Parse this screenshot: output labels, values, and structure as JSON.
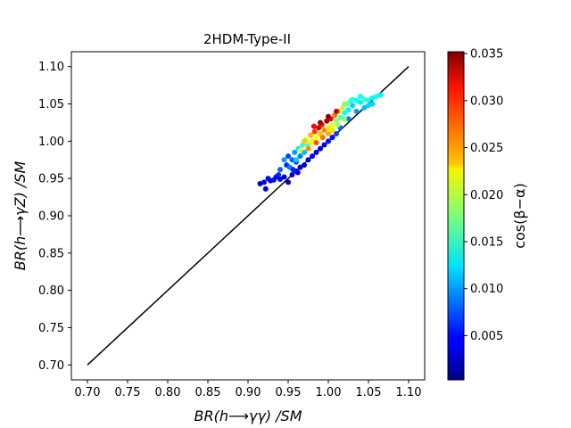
{
  "chart_data": {
    "type": "scatter",
    "title": "2HDM-Type-II",
    "xlabel": "BR(h⟶γγ) /SM",
    "ylabel": "BR(h⟶γZ) /SM",
    "xlim": [
      0.68,
      1.12
    ],
    "ylim": [
      0.68,
      1.12
    ],
    "xticks": [
      "0.70",
      "0.75",
      "0.80",
      "0.85",
      "0.90",
      "0.95",
      "1.00",
      "1.05",
      "1.10"
    ],
    "yticks": [
      "0.70",
      "0.75",
      "0.80",
      "0.85",
      "0.90",
      "0.95",
      "1.00",
      "1.05",
      "1.10"
    ],
    "grid": false,
    "reference_line": {
      "x": [
        0.7,
        1.1
      ],
      "y": [
        0.7,
        1.1
      ],
      "color": "#000000"
    },
    "colorbar": {
      "label": "cos(β−α)",
      "colormap": "jet",
      "range": [
        0.0003,
        0.0352
      ],
      "ticks": [
        "0.005",
        "0.010",
        "0.015",
        "0.020",
        "0.025",
        "0.030",
        "0.035"
      ]
    },
    "points": [
      {
        "x": 0.915,
        "y": 0.943,
        "c": 0.002
      },
      {
        "x": 0.92,
        "y": 0.945,
        "c": 0.004
      },
      {
        "x": 0.925,
        "y": 0.95,
        "c": 0.005
      },
      {
        "x": 0.928,
        "y": 0.947,
        "c": 0.003
      },
      {
        "x": 0.922,
        "y": 0.936,
        "c": 0.004
      },
      {
        "x": 0.935,
        "y": 0.952,
        "c": 0.004
      },
      {
        "x": 0.94,
        "y": 0.949,
        "c": 0.005
      },
      {
        "x": 0.945,
        "y": 0.952,
        "c": 0.003
      },
      {
        "x": 0.95,
        "y": 0.945,
        "c": 0.002
      },
      {
        "x": 0.955,
        "y": 0.955,
        "c": 0.003
      },
      {
        "x": 0.96,
        "y": 0.96,
        "c": 0.002
      },
      {
        "x": 0.965,
        "y": 0.965,
        "c": 0.003
      },
      {
        "x": 0.97,
        "y": 0.968,
        "c": 0.004
      },
      {
        "x": 0.975,
        "y": 0.975,
        "c": 0.003
      },
      {
        "x": 0.98,
        "y": 0.98,
        "c": 0.004
      },
      {
        "x": 0.985,
        "y": 0.985,
        "c": 0.003
      },
      {
        "x": 0.99,
        "y": 0.99,
        "c": 0.004
      },
      {
        "x": 0.995,
        "y": 0.995,
        "c": 0.004
      },
      {
        "x": 1.0,
        "y": 1.0,
        "c": 0.005
      },
      {
        "x": 1.005,
        "y": 1.005,
        "c": 0.005
      },
      {
        "x": 0.948,
        "y": 0.968,
        "c": 0.006
      },
      {
        "x": 0.95,
        "y": 0.98,
        "c": 0.007
      },
      {
        "x": 0.952,
        "y": 0.965,
        "c": 0.009
      },
      {
        "x": 0.955,
        "y": 0.975,
        "c": 0.008
      },
      {
        "x": 0.958,
        "y": 0.985,
        "c": 0.01
      },
      {
        "x": 0.96,
        "y": 0.972,
        "c": 0.007
      },
      {
        "x": 0.963,
        "y": 0.99,
        "c": 0.012
      },
      {
        "x": 0.965,
        "y": 0.98,
        "c": 0.009
      },
      {
        "x": 0.968,
        "y": 0.995,
        "c": 0.015
      },
      {
        "x": 0.97,
        "y": 0.985,
        "c": 0.011
      },
      {
        "x": 0.972,
        "y": 1.002,
        "c": 0.021
      },
      {
        "x": 0.975,
        "y": 0.995,
        "c": 0.016
      },
      {
        "x": 0.978,
        "y": 1.008,
        "c": 0.025
      },
      {
        "x": 0.98,
        "y": 1.0,
        "c": 0.019
      },
      {
        "x": 0.983,
        "y": 1.013,
        "c": 0.029
      },
      {
        "x": 0.985,
        "y": 1.005,
        "c": 0.022
      },
      {
        "x": 0.988,
        "y": 1.018,
        "c": 0.033
      },
      {
        "x": 0.99,
        "y": 1.01,
        "c": 0.024
      },
      {
        "x": 0.992,
        "y": 1.022,
        "c": 0.03
      },
      {
        "x": 0.995,
        "y": 1.015,
        "c": 0.026
      },
      {
        "x": 0.998,
        "y": 1.027,
        "c": 0.034
      },
      {
        "x": 1.0,
        "y": 1.018,
        "c": 0.023
      },
      {
        "x": 1.003,
        "y": 1.03,
        "c": 0.031
      },
      {
        "x": 1.005,
        "y": 1.022,
        "c": 0.021
      },
      {
        "x": 1.008,
        "y": 1.035,
        "c": 0.027
      },
      {
        "x": 1.01,
        "y": 1.028,
        "c": 0.018
      },
      {
        "x": 1.013,
        "y": 1.04,
        "c": 0.024
      },
      {
        "x": 1.015,
        "y": 1.032,
        "c": 0.016
      },
      {
        "x": 1.018,
        "y": 1.045,
        "c": 0.02
      },
      {
        "x": 1.02,
        "y": 1.038,
        "c": 0.014
      },
      {
        "x": 1.023,
        "y": 1.05,
        "c": 0.017
      },
      {
        "x": 1.025,
        "y": 1.042,
        "c": 0.013
      },
      {
        "x": 1.028,
        "y": 1.054,
        "c": 0.015
      },
      {
        "x": 1.03,
        "y": 1.048,
        "c": 0.012
      },
      {
        "x": 1.035,
        "y": 1.055,
        "c": 0.014
      },
      {
        "x": 1.04,
        "y": 1.052,
        "c": 0.013
      },
      {
        "x": 1.045,
        "y": 1.056,
        "c": 0.015
      },
      {
        "x": 1.05,
        "y": 1.055,
        "c": 0.014
      },
      {
        "x": 1.055,
        "y": 1.058,
        "c": 0.013
      },
      {
        "x": 1.06,
        "y": 1.06,
        "c": 0.014
      },
      {
        "x": 1.065,
        "y": 1.062,
        "c": 0.013
      },
      {
        "x": 1.055,
        "y": 1.05,
        "c": 0.012
      },
      {
        "x": 1.045,
        "y": 1.045,
        "c": 0.011
      },
      {
        "x": 1.035,
        "y": 1.04,
        "c": 0.01
      },
      {
        "x": 1.025,
        "y": 1.03,
        "c": 0.009
      },
      {
        "x": 1.015,
        "y": 1.018,
        "c": 0.008
      },
      {
        "x": 1.01,
        "y": 1.01,
        "c": 0.007
      },
      {
        "x": 0.96,
        "y": 0.975,
        "c": 0.012
      },
      {
        "x": 0.965,
        "y": 0.988,
        "c": 0.02
      },
      {
        "x": 0.975,
        "y": 0.99,
        "c": 0.026
      },
      {
        "x": 0.985,
        "y": 0.998,
        "c": 0.028
      },
      {
        "x": 0.993,
        "y": 1.005,
        "c": 0.027
      },
      {
        "x": 1.0,
        "y": 1.01,
        "c": 0.025
      },
      {
        "x": 1.005,
        "y": 1.015,
        "c": 0.023
      },
      {
        "x": 1.012,
        "y": 1.022,
        "c": 0.019
      },
      {
        "x": 1.02,
        "y": 1.03,
        "c": 0.018
      },
      {
        "x": 0.982,
        "y": 1.02,
        "c": 0.031
      },
      {
        "x": 0.99,
        "y": 1.025,
        "c": 0.034
      },
      {
        "x": 1.0,
        "y": 1.033,
        "c": 0.035
      },
      {
        "x": 1.01,
        "y": 1.04,
        "c": 0.033
      },
      {
        "x": 0.97,
        "y": 1.0,
        "c": 0.024
      },
      {
        "x": 0.978,
        "y": 0.998,
        "c": 0.022
      },
      {
        "x": 0.956,
        "y": 0.962,
        "c": 0.006
      },
      {
        "x": 0.962,
        "y": 0.958,
        "c": 0.004
      },
      {
        "x": 0.94,
        "y": 0.962,
        "c": 0.008
      },
      {
        "x": 0.945,
        "y": 0.975,
        "c": 0.01
      },
      {
        "x": 0.938,
        "y": 0.955,
        "c": 0.006
      },
      {
        "x": 0.932,
        "y": 0.948,
        "c": 0.005
      },
      {
        "x": 1.04,
        "y": 1.06,
        "c": 0.014
      },
      {
        "x": 1.03,
        "y": 1.056,
        "c": 0.015
      },
      {
        "x": 1.02,
        "y": 1.05,
        "c": 0.018
      },
      {
        "x": 1.05,
        "y": 1.048,
        "c": 0.012
      }
    ]
  }
}
